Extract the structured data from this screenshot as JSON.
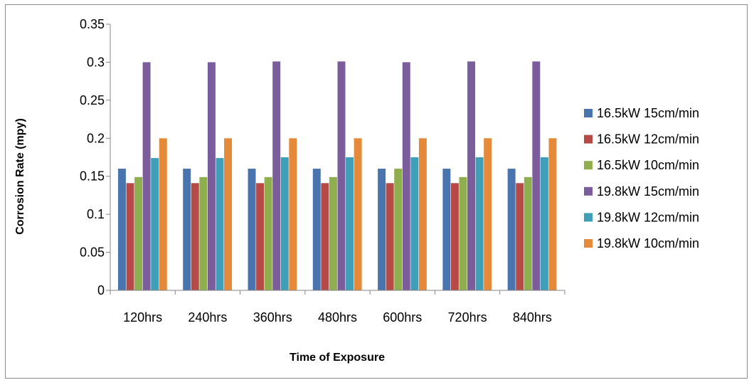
{
  "chart_data": {
    "type": "bar",
    "title": "",
    "xlabel": "Time of Exposure",
    "ylabel": "Corrosion Rate (mpy)",
    "ylim": [
      0,
      0.35
    ],
    "yticks": [
      "0",
      "0.05",
      "0.1",
      "0.15",
      "0.2",
      "0.25",
      "0.3",
      "0.35"
    ],
    "categories": [
      "120hrs",
      "240hrs",
      "360hrs",
      "480hrs",
      "600hrs",
      "720hrs",
      "840hrs"
    ],
    "grid": false,
    "legend_position": "right",
    "series": [
      {
        "name": "16.5kW 15cm/min",
        "color": "#4a74ad",
        "values": [
          0.16,
          0.16,
          0.16,
          0.16,
          0.16,
          0.16,
          0.16
        ]
      },
      {
        "name": "16.5kW 12cm/min",
        "color": "#b54a47",
        "values": [
          0.141,
          0.141,
          0.141,
          0.141,
          0.141,
          0.141,
          0.141
        ]
      },
      {
        "name": "16.5kW 10cm/min",
        "color": "#8fae4e",
        "values": [
          0.149,
          0.149,
          0.149,
          0.149,
          0.16,
          0.149,
          0.149
        ]
      },
      {
        "name": "19.8kW 15cm/min",
        "color": "#7b5d9c",
        "values": [
          0.3,
          0.3,
          0.301,
          0.301,
          0.3,
          0.301,
          0.301
        ]
      },
      {
        "name": "19.8kW 12cm/min",
        "color": "#3f9fb9",
        "values": [
          0.174,
          0.174,
          0.175,
          0.175,
          0.175,
          0.175,
          0.175
        ]
      },
      {
        "name": "19.8kW 10cm/min",
        "color": "#e58a3a",
        "values": [
          0.2,
          0.2,
          0.2,
          0.2,
          0.2,
          0.2,
          0.2
        ]
      }
    ]
  }
}
